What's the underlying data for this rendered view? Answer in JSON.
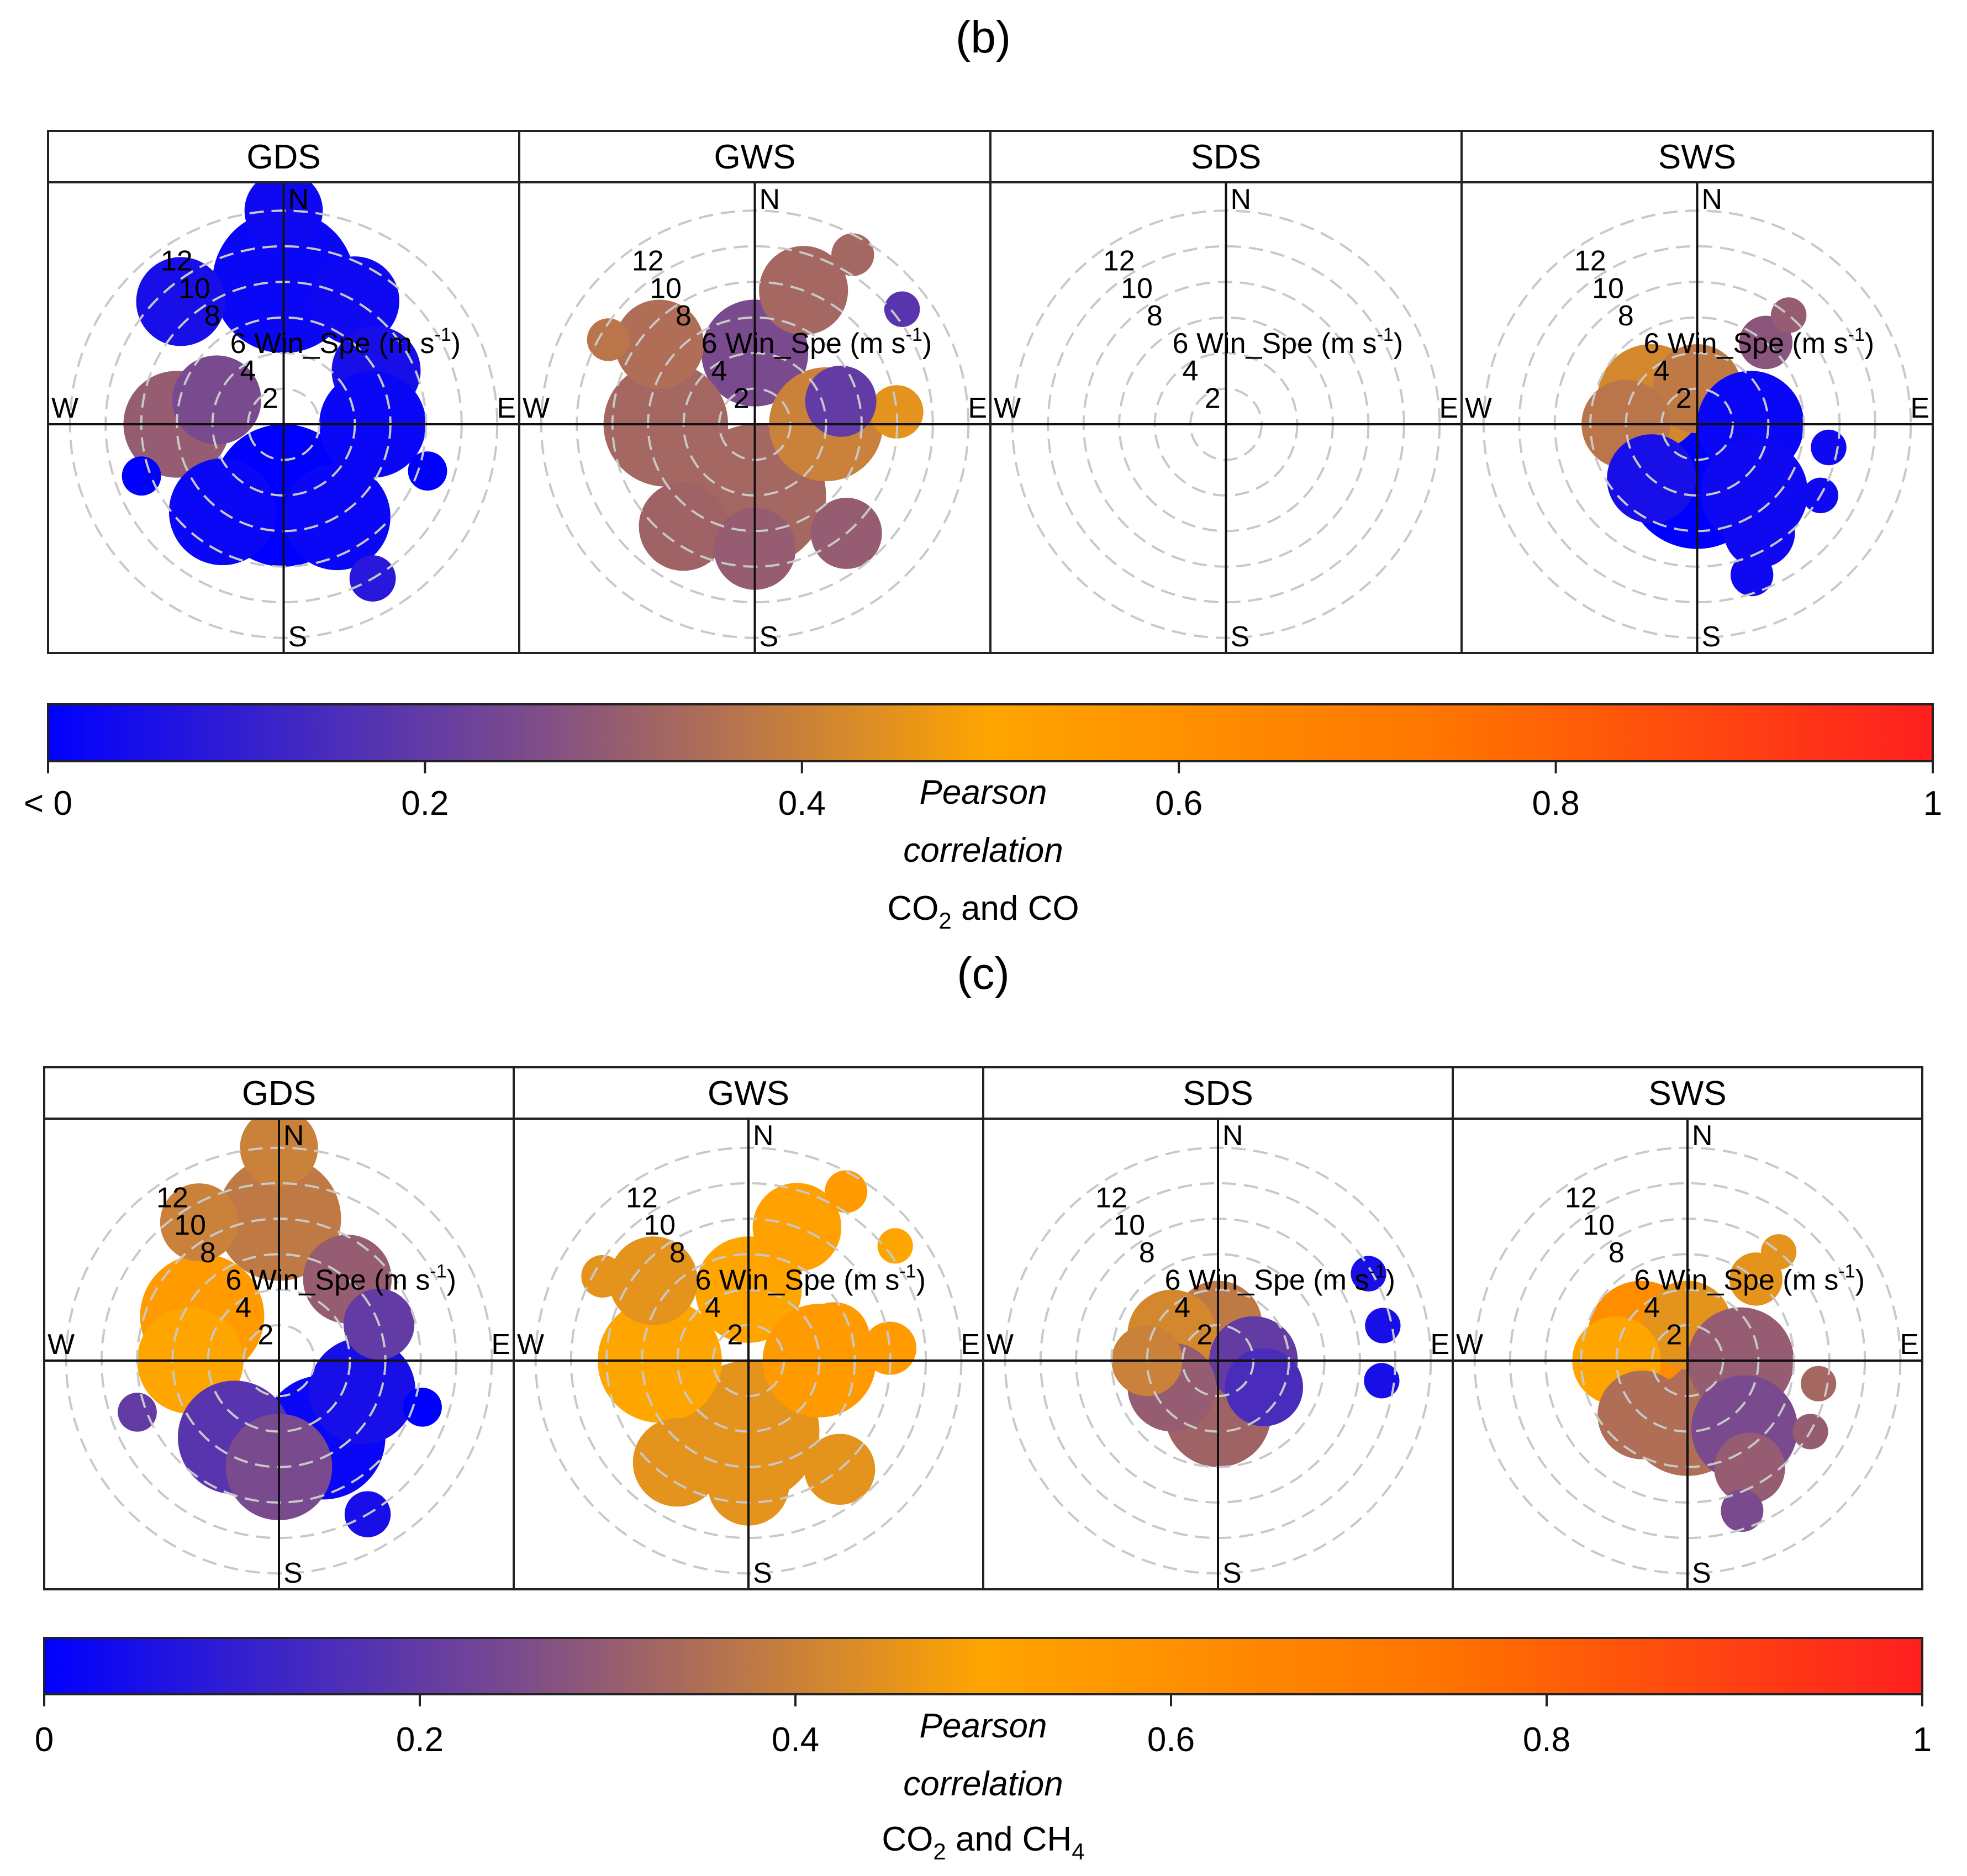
{
  "chart_data": [
    {
      "type": "polar-plot",
      "panel_letter": "(b)",
      "facets": [
        "GDS",
        "GWS",
        "SDS",
        "SWS"
      ],
      "compass": [
        "N",
        "E",
        "S",
        "W"
      ],
      "radial_labels": [
        "2",
        "4",
        "6",
        "8",
        "10",
        "12"
      ],
      "radial_ticks": [
        2,
        4,
        6,
        8,
        10,
        12
      ],
      "radial_axis_label": "Win_Spe (m s",
      "radial_axis_unit_sup": "-1",
      "radial_axis_close": ")",
      "colorbar": {
        "ticks": [
          0,
          0.2,
          0.4,
          0.6,
          0.8,
          1
        ],
        "tick_labels": [
          "< 0",
          "0.2",
          "0.4",
          "0.6",
          "0.8",
          "1"
        ],
        "colors": [
          "#0000ff",
          "#7a4a8e",
          "#ffa500",
          "#ff7200",
          "#ff1f1f"
        ],
        "title_line1": "Pearson",
        "title_line2": "correlation",
        "species_prefix": "CO",
        "species_sub": "2",
        "species_rest": " and CO",
        "species_sub2": ""
      },
      "blobs": {
        "GDS": [
          {
            "dir": 0,
            "ws": 8,
            "r": 4,
            "c": 0.02
          },
          {
            "dir": 0,
            "ws": 12,
            "r": 2.2,
            "c": 0.03
          },
          {
            "dir": 320,
            "ws": 9,
            "r": 2.5,
            "c": 0.05
          },
          {
            "dir": 30,
            "ws": 8,
            "r": 2.5,
            "c": 0.03
          },
          {
            "dir": 60,
            "ws": 6,
            "r": 2.5,
            "c": 0.05
          },
          {
            "dir": 270,
            "ws": 6,
            "r": 3,
            "c": 0.3
          },
          {
            "dir": 290,
            "ws": 4,
            "r": 2.5,
            "c": 0.25
          },
          {
            "dir": 180,
            "ws": 4,
            "r": 4,
            "c": 0.0
          },
          {
            "dir": 150,
            "ws": 6,
            "r": 3,
            "c": 0.02
          },
          {
            "dir": 215,
            "ws": 6,
            "r": 3,
            "c": 0.02
          },
          {
            "dir": 90,
            "ws": 5,
            "r": 3,
            "c": 0.02
          },
          {
            "dir": 250,
            "ws": 8.5,
            "r": 1.1,
            "c": 0.0
          },
          {
            "dir": 108,
            "ws": 8.5,
            "r": 1.1,
            "c": 0.0
          },
          {
            "dir": 150,
            "ws": 10,
            "r": 1.3,
            "c": 0.08
          }
        ],
        "GWS": [
          {
            "dir": 180,
            "ws": 4,
            "r": 4,
            "c": 0.33
          },
          {
            "dir": 0,
            "ws": 4,
            "r": 3,
            "c": 0.25
          },
          {
            "dir": 90,
            "ws": 4,
            "r": 3.2,
            "c": 0.4
          },
          {
            "dir": 270,
            "ws": 5,
            "r": 3.5,
            "c": 0.33
          },
          {
            "dir": 20,
            "ws": 8,
            "r": 2.5,
            "c": 0.33
          },
          {
            "dir": 310,
            "ws": 7,
            "r": 2.5,
            "c": 0.35
          },
          {
            "dir": 85,
            "ws": 8,
            "r": 1.5,
            "c": 0.45
          },
          {
            "dir": 140,
            "ws": 8,
            "r": 2,
            "c": 0.3
          },
          {
            "dir": 215,
            "ws": 7,
            "r": 2.5,
            "c": 0.32
          },
          {
            "dir": 180,
            "ws": 7,
            "r": 2.3,
            "c": 0.3
          },
          {
            "dir": 30,
            "ws": 11,
            "r": 1.2,
            "c": 0.33
          },
          {
            "dir": 52,
            "ws": 10.5,
            "r": 1.0,
            "c": 0.18
          },
          {
            "dir": 300,
            "ws": 9.5,
            "r": 1.2,
            "c": 0.37
          },
          {
            "dir": 75,
            "ws": 5,
            "r": 2,
            "c": 0.2
          }
        ],
        "SDS": [],
        "SWS": [
          {
            "dir": 180,
            "ws": 3,
            "r": 4,
            "c": 0.0
          },
          {
            "dir": 300,
            "ws": 3,
            "r": 3,
            "c": 0.42
          },
          {
            "dir": 0,
            "ws": 2,
            "r": 2.5,
            "c": 0.38
          },
          {
            "dir": 90,
            "ws": 3,
            "r": 3,
            "c": 0.02
          },
          {
            "dir": 270,
            "ws": 4,
            "r": 2.5,
            "c": 0.37
          },
          {
            "dir": 220,
            "ws": 4,
            "r": 2.5,
            "c": 0.05
          },
          {
            "dir": 140,
            "ws": 5,
            "r": 3,
            "c": 0.03
          },
          {
            "dir": 150,
            "ws": 7,
            "r": 2,
            "c": 0.03
          },
          {
            "dir": 160,
            "ws": 9,
            "r": 1.2,
            "c": 0.03
          },
          {
            "dir": 40,
            "ws": 6,
            "r": 1.5,
            "c": 0.28
          },
          {
            "dir": 40,
            "ws": 8,
            "r": 1.0,
            "c": 0.3
          },
          {
            "dir": 100,
            "ws": 7.5,
            "r": 1.0,
            "c": 0.03
          },
          {
            "dir": 120,
            "ws": 8,
            "r": 1.0,
            "c": 0.03
          }
        ]
      }
    },
    {
      "type": "polar-plot",
      "panel_letter": "(c)",
      "facets": [
        "GDS",
        "GWS",
        "SDS",
        "SWS"
      ],
      "compass": [
        "N",
        "E",
        "S",
        "W"
      ],
      "radial_labels": [
        "2",
        "4",
        "6",
        "8",
        "10",
        "12"
      ],
      "radial_ticks": [
        2,
        4,
        6,
        8,
        10,
        12
      ],
      "radial_axis_label": "Win_Spe (m s",
      "radial_axis_unit_sup": "-1",
      "radial_axis_close": ")",
      "colorbar": {
        "ticks": [
          0,
          0.2,
          0.4,
          0.6,
          0.8,
          1
        ],
        "tick_labels": [
          "0",
          "0.2",
          "0.4",
          "0.6",
          "0.8",
          "1"
        ],
        "colors": [
          "#0000ff",
          "#7a4a8e",
          "#ffa500",
          "#ff7200",
          "#ff1f1f"
        ],
        "title_line1": "Pearson",
        "title_line2": "correlation",
        "species_prefix": "CO",
        "species_sub": "2",
        "species_rest": " and CH",
        "species_sub2": "4"
      },
      "blobs": {
        "GDS": [
          {
            "dir": 0,
            "ws": 8,
            "r": 3.5,
            "c": 0.38
          },
          {
            "dir": 0,
            "ws": 12,
            "r": 2.2,
            "c": 0.4
          },
          {
            "dir": 300,
            "ws": 5,
            "r": 3.5,
            "c": 0.55
          },
          {
            "dir": 270,
            "ws": 5,
            "r": 3,
            "c": 0.5
          },
          {
            "dir": 150,
            "ws": 5,
            "r": 3.5,
            "c": 0.02
          },
          {
            "dir": 110,
            "ws": 5,
            "r": 3,
            "c": 0.05
          },
          {
            "dir": 210,
            "ws": 5,
            "r": 3.2,
            "c": 0.18
          },
          {
            "dir": 40,
            "ws": 6,
            "r": 2.5,
            "c": 0.3
          },
          {
            "dir": 70,
            "ws": 6,
            "r": 2,
            "c": 0.2
          },
          {
            "dir": 180,
            "ws": 6,
            "r": 3,
            "c": 0.25
          },
          {
            "dir": 250,
            "ws": 8.5,
            "r": 1.1,
            "c": 0.2
          },
          {
            "dir": 108,
            "ws": 8.5,
            "r": 1.1,
            "c": 0.0
          },
          {
            "dir": 150,
            "ws": 10,
            "r": 1.3,
            "c": 0.05
          },
          {
            "dir": 330,
            "ws": 9,
            "r": 2.2,
            "c": 0.4
          }
        ],
        "GWS": [
          {
            "dir": 180,
            "ws": 4,
            "r": 4,
            "c": 0.45
          },
          {
            "dir": 0,
            "ws": 4,
            "r": 3,
            "c": 0.5
          },
          {
            "dir": 90,
            "ws": 4,
            "r": 3.2,
            "c": 0.55
          },
          {
            "dir": 270,
            "ws": 5,
            "r": 3.5,
            "c": 0.5
          },
          {
            "dir": 20,
            "ws": 8,
            "r": 2.5,
            "c": 0.52
          },
          {
            "dir": 310,
            "ws": 7,
            "r": 2.5,
            "c": 0.45
          },
          {
            "dir": 85,
            "ws": 8,
            "r": 1.5,
            "c": 0.55
          },
          {
            "dir": 140,
            "ws": 8,
            "r": 2,
            "c": 0.45
          },
          {
            "dir": 215,
            "ws": 7,
            "r": 2.5,
            "c": 0.45
          },
          {
            "dir": 180,
            "ws": 7,
            "r": 2.3,
            "c": 0.45
          },
          {
            "dir": 30,
            "ws": 11,
            "r": 1.2,
            "c": 0.55
          },
          {
            "dir": 52,
            "ws": 10.5,
            "r": 1.0,
            "c": 0.5
          },
          {
            "dir": 300,
            "ws": 9.5,
            "r": 1.2,
            "c": 0.45
          },
          {
            "dir": 75,
            "ws": 5,
            "r": 2,
            "c": 0.55
          }
        ],
        "SDS": [
          {
            "dir": 180,
            "ws": 3,
            "r": 3,
            "c": 0.32
          },
          {
            "dir": 0,
            "ws": 2,
            "r": 2.5,
            "c": 0.38
          },
          {
            "dir": 300,
            "ws": 3,
            "r": 2.5,
            "c": 0.42
          },
          {
            "dir": 90,
            "ws": 2,
            "r": 2.5,
            "c": 0.2
          },
          {
            "dir": 120,
            "ws": 3,
            "r": 2.2,
            "c": 0.15
          },
          {
            "dir": 240,
            "ws": 3,
            "r": 2.5,
            "c": 0.3
          },
          {
            "dir": 270,
            "ws": 4,
            "r": 2,
            "c": 0.4
          },
          {
            "dir": 60,
            "ws": 9.8,
            "r": 1.0,
            "c": 0.05
          },
          {
            "dir": 78,
            "ws": 9.5,
            "r": 1.0,
            "c": 0.05
          },
          {
            "dir": 97,
            "ws": 9.3,
            "r": 1.0,
            "c": 0.05
          }
        ],
        "SWS": [
          {
            "dir": 180,
            "ws": 3,
            "r": 3.5,
            "c": 0.35
          },
          {
            "dir": 300,
            "ws": 3,
            "r": 3,
            "c": 0.62
          },
          {
            "dir": 0,
            "ws": 2,
            "r": 2.5,
            "c": 0.45
          },
          {
            "dir": 90,
            "ws": 3,
            "r": 3,
            "c": 0.3
          },
          {
            "dir": 270,
            "ws": 4,
            "r": 2.5,
            "c": 0.5
          },
          {
            "dir": 220,
            "ws": 4,
            "r": 2.5,
            "c": 0.35
          },
          {
            "dir": 140,
            "ws": 5,
            "r": 3,
            "c": 0.25
          },
          {
            "dir": 150,
            "ws": 7,
            "r": 2,
            "c": 0.3
          },
          {
            "dir": 160,
            "ws": 9,
            "r": 1.2,
            "c": 0.25
          },
          {
            "dir": 40,
            "ws": 6,
            "r": 1.5,
            "c": 0.45
          },
          {
            "dir": 40,
            "ws": 8,
            "r": 1.0,
            "c": 0.45
          },
          {
            "dir": 100,
            "ws": 7.5,
            "r": 1.0,
            "c": 0.33
          },
          {
            "dir": 120,
            "ws": 8,
            "r": 1.0,
            "c": 0.3
          }
        ]
      }
    }
  ]
}
